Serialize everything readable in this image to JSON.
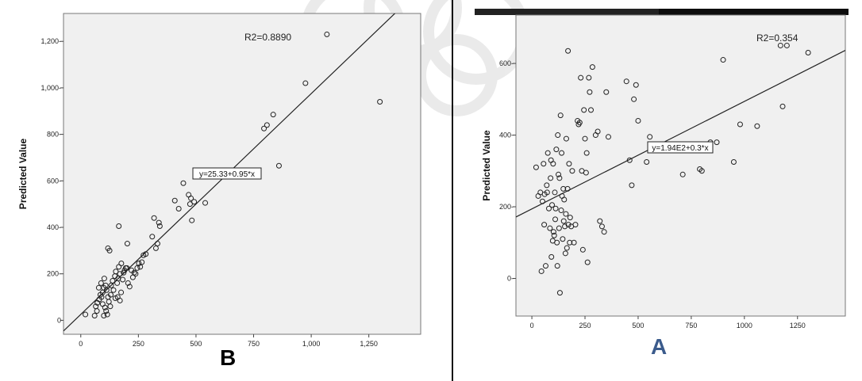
{
  "charts": [
    {
      "id": "B",
      "chart_data": {
        "type": "scatter",
        "ylabel": "Predicted Value",
        "xlim": [
          -75,
          1475
        ],
        "ylim": [
          -60,
          1320
        ],
        "xticks": [
          0,
          250,
          500,
          750,
          1000,
          1250
        ],
        "xtick_labels": [
          "0",
          "250",
          "500",
          "750",
          "1,000",
          "1,250"
        ],
        "yticks": [
          0,
          200,
          400,
          600,
          800,
          1000,
          1200
        ],
        "ytick_labels": [
          "0",
          "200-",
          "400-",
          "600-",
          "800-",
          "1,000-",
          "1,200-"
        ],
        "r2_label": "R2=0.8890",
        "equation_label": "y=25.33+0.95*x",
        "fit": {
          "intercept": 25.33,
          "slope": 0.95
        },
        "points": [
          [
            20,
            25
          ],
          [
            60,
            20
          ],
          [
            70,
            40
          ],
          [
            65,
            60
          ],
          [
            72,
            75
          ],
          [
            80,
            90
          ],
          [
            85,
            110
          ],
          [
            90,
            100
          ],
          [
            95,
            120
          ],
          [
            100,
            140
          ],
          [
            78,
            140
          ],
          [
            88,
            160
          ],
          [
            102,
            180
          ],
          [
            108,
            150
          ],
          [
            112,
            130
          ],
          [
            118,
            100
          ],
          [
            122,
            80
          ],
          [
            95,
            70
          ],
          [
            105,
            55
          ],
          [
            110,
            40
          ],
          [
            115,
            25
          ],
          [
            100,
            20
          ],
          [
            128,
            60
          ],
          [
            130,
            110
          ],
          [
            132,
            150
          ],
          [
            138,
            170
          ],
          [
            142,
            130
          ],
          [
            148,
            190
          ],
          [
            152,
            210
          ],
          [
            158,
            160
          ],
          [
            162,
            180
          ],
          [
            165,
            230
          ],
          [
            170,
            200
          ],
          [
            176,
            245
          ],
          [
            182,
            175
          ],
          [
            186,
            205
          ],
          [
            190,
            215
          ],
          [
            195,
            225
          ],
          [
            200,
            225
          ],
          [
            205,
            160
          ],
          [
            212,
            145
          ],
          [
            220,
            215
          ],
          [
            226,
            185
          ],
          [
            232,
            205
          ],
          [
            238,
            200
          ],
          [
            245,
            225
          ],
          [
            252,
            245
          ],
          [
            258,
            230
          ],
          [
            265,
            250
          ],
          [
            272,
            280
          ],
          [
            282,
            285
          ],
          [
            202,
            330
          ],
          [
            165,
            405
          ],
          [
            125,
            300
          ],
          [
            118,
            310
          ],
          [
            150,
            95
          ],
          [
            160,
            100
          ],
          [
            170,
            85
          ],
          [
            175,
            120
          ],
          [
            310,
            360
          ],
          [
            318,
            440
          ],
          [
            326,
            310
          ],
          [
            333,
            330
          ],
          [
            339,
            420
          ],
          [
            343,
            405
          ],
          [
            408,
            515
          ],
          [
            425,
            480
          ],
          [
            445,
            590
          ],
          [
            468,
            540
          ],
          [
            474,
            500
          ],
          [
            478,
            525
          ],
          [
            482,
            430
          ],
          [
            492,
            510
          ],
          [
            540,
            505
          ],
          [
            795,
            825
          ],
          [
            808,
            840
          ],
          [
            835,
            885
          ],
          [
            860,
            665
          ],
          [
            975,
            1020
          ],
          [
            1068,
            1230
          ],
          [
            1298,
            940
          ]
        ]
      },
      "panel_letter": "B",
      "letter_color": "#000000"
    },
    {
      "id": "A",
      "chart_data": {
        "type": "scatter",
        "ylabel": "Predicted Value",
        "xlim": [
          -75,
          1475
        ],
        "ylim": [
          -105,
          735
        ],
        "xticks": [
          0,
          250,
          500,
          750,
          1000,
          1250
        ],
        "xtick_labels": [
          "0",
          "250",
          "500",
          "750",
          "1000",
          "1250"
        ],
        "yticks": [
          0,
          200,
          400,
          600
        ],
        "ytick_labels": [
          "0-",
          "200-",
          "400-",
          "600-"
        ],
        "r2_label": "R2=0.354",
        "equation_label": "y=1.94E2+0.3*x",
        "fit": {
          "intercept": 194,
          "slope": 0.3
        },
        "points": [
          [
            20,
            310
          ],
          [
            30,
            230
          ],
          [
            40,
            240
          ],
          [
            45,
            20
          ],
          [
            50,
            215
          ],
          [
            55,
            320
          ],
          [
            58,
            150
          ],
          [
            60,
            235
          ],
          [
            65,
            35
          ],
          [
            70,
            260
          ],
          [
            72,
            240
          ],
          [
            75,
            350
          ],
          [
            80,
            195
          ],
          [
            85,
            140
          ],
          [
            88,
            280
          ],
          [
            90,
            330
          ],
          [
            92,
            60
          ],
          [
            95,
            205
          ],
          [
            98,
            105
          ],
          [
            100,
            320
          ],
          [
            102,
            130
          ],
          [
            105,
            120
          ],
          [
            108,
            240
          ],
          [
            110,
            165
          ],
          [
            112,
            195
          ],
          [
            115,
            360
          ],
          [
            118,
            100
          ],
          [
            120,
            35
          ],
          [
            122,
            400
          ],
          [
            125,
            290
          ],
          [
            128,
            140
          ],
          [
            130,
            280
          ],
          [
            132,
            -40
          ],
          [
            135,
            455
          ],
          [
            138,
            190
          ],
          [
            140,
            350
          ],
          [
            142,
            230
          ],
          [
            145,
            110
          ],
          [
            148,
            250
          ],
          [
            150,
            160
          ],
          [
            152,
            220
          ],
          [
            155,
            145
          ],
          [
            158,
            70
          ],
          [
            160,
            180
          ],
          [
            162,
            390
          ],
          [
            165,
            85
          ],
          [
            168,
            250
          ],
          [
            170,
            635
          ],
          [
            172,
            150
          ],
          [
            175,
            320
          ],
          [
            178,
            100
          ],
          [
            180,
            170
          ],
          [
            185,
            145
          ],
          [
            190,
            300
          ],
          [
            198,
            100
          ],
          [
            205,
            150
          ],
          [
            215,
            440
          ],
          [
            220,
            430
          ],
          [
            225,
            435
          ],
          [
            230,
            560
          ],
          [
            235,
            300
          ],
          [
            240,
            80
          ],
          [
            245,
            470
          ],
          [
            250,
            390
          ],
          [
            255,
            295
          ],
          [
            258,
            350
          ],
          [
            262,
            45
          ],
          [
            268,
            560
          ],
          [
            272,
            520
          ],
          [
            278,
            470
          ],
          [
            285,
            590
          ],
          [
            300,
            400
          ],
          [
            310,
            410
          ],
          [
            320,
            160
          ],
          [
            330,
            145
          ],
          [
            340,
            130
          ],
          [
            350,
            520
          ],
          [
            360,
            395
          ],
          [
            445,
            550
          ],
          [
            460,
            330
          ],
          [
            470,
            260
          ],
          [
            480,
            500
          ],
          [
            490,
            540
          ],
          [
            500,
            440
          ],
          [
            540,
            325
          ],
          [
            555,
            395
          ],
          [
            650,
            360
          ],
          [
            710,
            290
          ],
          [
            790,
            305
          ],
          [
            800,
            300
          ],
          [
            820,
            370
          ],
          [
            840,
            380
          ],
          [
            870,
            380
          ],
          [
            900,
            610
          ],
          [
            950,
            325
          ],
          [
            980,
            430
          ],
          [
            1060,
            425
          ],
          [
            1170,
            650
          ],
          [
            1180,
            480
          ],
          [
            1200,
            650
          ],
          [
            1300,
            630
          ]
        ]
      },
      "panel_letter": "A",
      "letter_color": "#3b5b8c"
    }
  ]
}
